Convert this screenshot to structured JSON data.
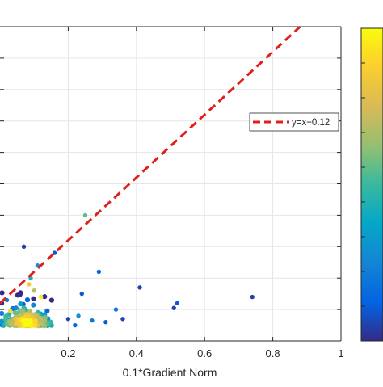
{
  "chart_data": {
    "type": "scatter",
    "title": "",
    "xlabel": "0.1*Gradient Norm",
    "ylabel": "",
    "xlim": [
      0,
      1
    ],
    "ylim": [
      0,
      1
    ],
    "x_ticks": [
      0.2,
      0.4,
      0.6,
      0.8,
      1
    ],
    "x_tick_labels": [
      "0.2",
      "0.4",
      "0.6",
      "0.8",
      "1"
    ],
    "grid": true,
    "legend_position": "upper-right",
    "colormap": "parula",
    "colorbar": true,
    "colors": {
      "reference_line": "#e0201b",
      "grid": "#e6e6e6",
      "axis": "#262626"
    },
    "reference_line": {
      "label": "y=x+0.12",
      "slope": 1,
      "intercept": 0.12,
      "style": "dashed"
    },
    "outlier_points": [
      {
        "x": 0.25,
        "y": 0.4,
        "c": 0.55
      },
      {
        "x": 0.07,
        "y": 0.3,
        "c": 0.05
      },
      {
        "x": 0.16,
        "y": 0.28,
        "c": 0.1
      },
      {
        "x": 0.11,
        "y": 0.24,
        "c": 0.3
      },
      {
        "x": 0.29,
        "y": 0.22,
        "c": 0.15
      },
      {
        "x": 0.41,
        "y": 0.17,
        "c": 0.05
      },
      {
        "x": 0.24,
        "y": 0.15,
        "c": 0.1
      },
      {
        "x": 0.74,
        "y": 0.14,
        "c": 0.05
      },
      {
        "x": 0.52,
        "y": 0.12,
        "c": 0.1
      },
      {
        "x": 0.51,
        "y": 0.105,
        "c": 0.05
      },
      {
        "x": 0.34,
        "y": 0.1,
        "c": 0.2
      },
      {
        "x": 0.36,
        "y": 0.07,
        "c": 0.05
      },
      {
        "x": 0.31,
        "y": 0.06,
        "c": 0.1
      },
      {
        "x": 0.27,
        "y": 0.065,
        "c": 0.2
      },
      {
        "x": 0.23,
        "y": 0.08,
        "c": 0.3
      },
      {
        "x": 0.22,
        "y": 0.05,
        "c": 0.15
      },
      {
        "x": 0.2,
        "y": 0.07,
        "c": 0.05
      },
      {
        "x": 0.03,
        "y": 0.095,
        "c": 0.9
      },
      {
        "x": 0.02,
        "y": 0.13,
        "c": 0.2
      },
      {
        "x": 0.09,
        "y": 0.2,
        "c": 0.45
      },
      {
        "x": 0.085,
        "y": 0.18,
        "c": 0.85
      },
      {
        "x": 0.1,
        "y": 0.16,
        "c": 0.7
      },
      {
        "x": 0.12,
        "y": 0.14,
        "c": 0.95
      }
    ],
    "cluster": {
      "x_range": [
        0.0,
        0.18
      ],
      "y_range": [
        0.02,
        0.17
      ],
      "center": [
        0.08,
        0.06
      ],
      "count": 220,
      "note": "dense core: yellow (high), edges: blue (low)"
    }
  }
}
